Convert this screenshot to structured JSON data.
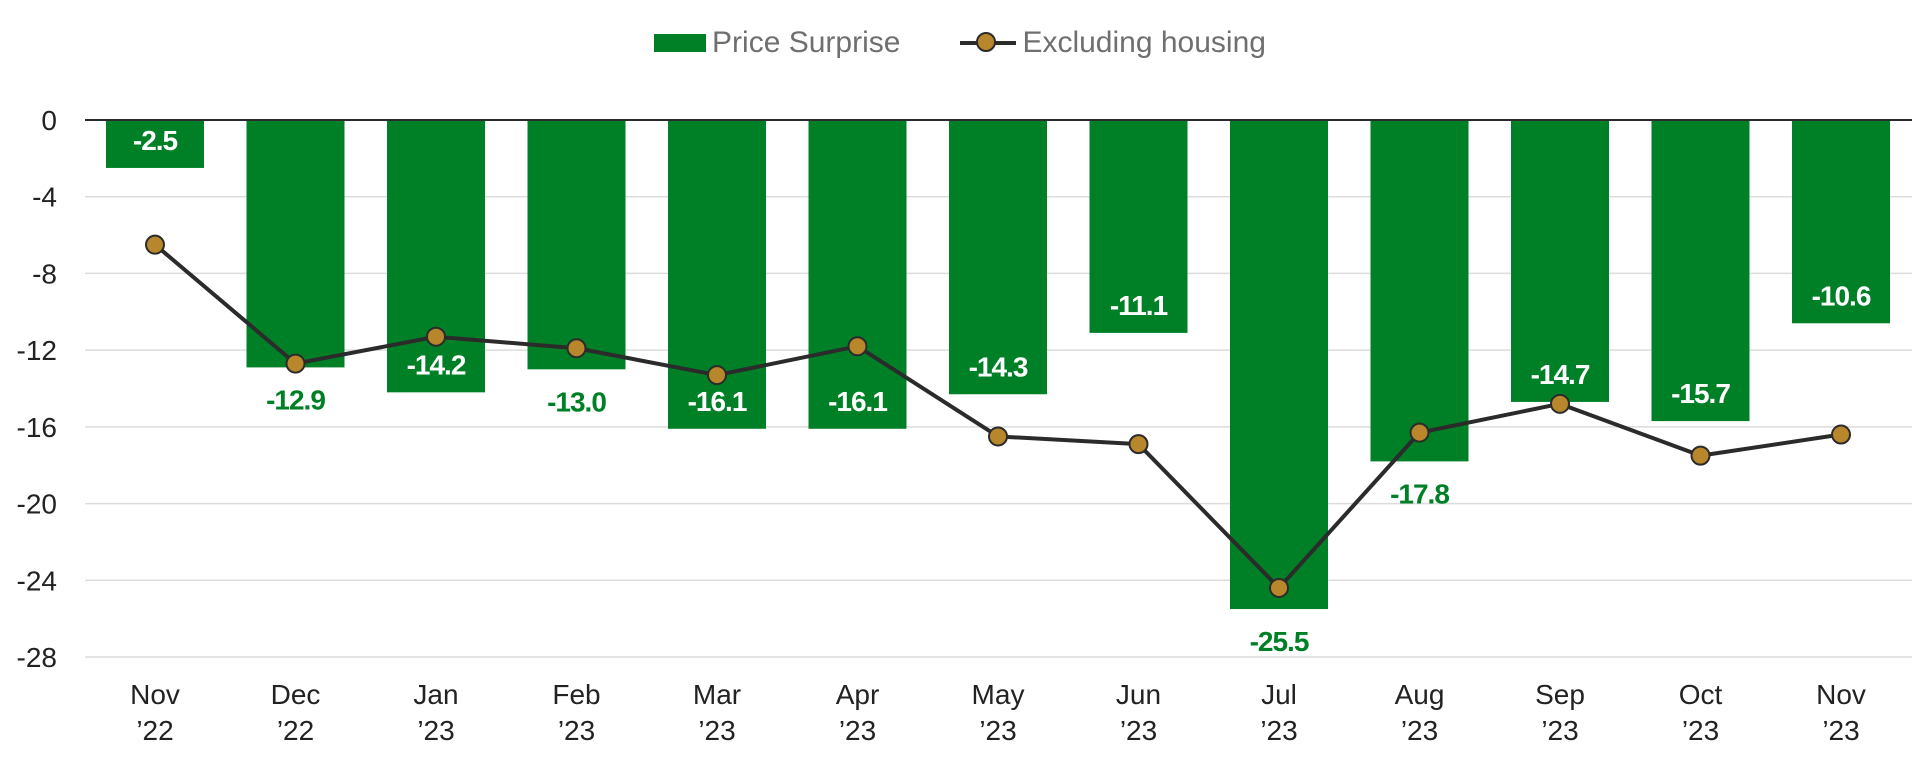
{
  "chart_data": {
    "type": "bar",
    "categories": [
      [
        "Nov",
        "’22"
      ],
      [
        "Dec",
        "’22"
      ],
      [
        "Jan",
        "’23"
      ],
      [
        "Feb",
        "’23"
      ],
      [
        "Mar",
        "’23"
      ],
      [
        "Apr",
        "’23"
      ],
      [
        "May",
        "’23"
      ],
      [
        "Jun",
        "’23"
      ],
      [
        "Jul",
        "’23"
      ],
      [
        "Aug",
        "’23"
      ],
      [
        "Sep",
        "’23"
      ],
      [
        "Oct",
        "’23"
      ],
      [
        "Nov",
        "’23"
      ]
    ],
    "series": [
      {
        "name": "Price Surprise",
        "type": "bar",
        "color": "#008026",
        "values": [
          -2.5,
          -12.9,
          -14.2,
          -13.0,
          -16.1,
          -16.1,
          -14.3,
          -11.1,
          -25.5,
          -17.8,
          -14.7,
          -15.7,
          -10.6
        ],
        "labels": [
          "-2.5",
          "-12.9",
          "-14.2",
          "-13.0",
          "-16.1",
          "-16.1",
          "-14.3",
          "-11.1",
          "-25.5",
          "-17.8",
          "-14.7",
          "-15.7",
          "-10.6"
        ],
        "label_position": [
          "inside",
          "outside",
          "inside",
          "outside",
          "inside",
          "inside",
          "inside",
          "inside",
          "outside",
          "outside",
          "inside",
          "inside",
          "inside"
        ]
      },
      {
        "name": "Excluding housing",
        "type": "line",
        "color": "#2b2b2b",
        "marker_color": "#b8862b",
        "values": [
          -6.5,
          -12.7,
          -11.3,
          -11.9,
          -13.3,
          -11.8,
          -16.5,
          -16.9,
          -24.4,
          -16.3,
          -14.8,
          -17.5,
          -16.4
        ]
      }
    ],
    "yticks": [
      "0",
      "-4",
      "-8",
      "-12",
      "-16",
      "-20",
      "-24",
      "-28"
    ],
    "ylim": [
      -28,
      0
    ],
    "grid": true,
    "legend_position": "top-center",
    "xlabel": "",
    "ylabel": ""
  }
}
